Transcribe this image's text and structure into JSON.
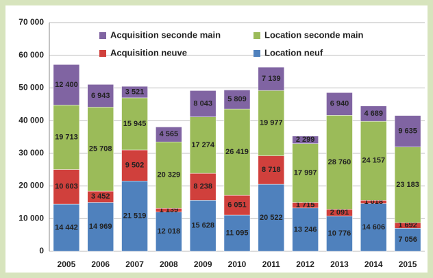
{
  "chart_data": {
    "type": "stacked_bar",
    "categories": [
      "2005",
      "2006",
      "2007",
      "2008",
      "2009",
      "2010",
      "2011",
      "2012",
      "2013",
      "2014",
      "2015"
    ],
    "series": [
      {
        "name": "Location neuf",
        "color": "#4f81bd",
        "values": [
          14442,
          14969,
          21519,
          12018,
          15628,
          11095,
          20522,
          13246,
          10776,
          14606,
          7056
        ],
        "value_labels": [
          "14 442",
          "14 969",
          "21 519",
          "12 018",
          "15 628",
          "11 095",
          "20 522",
          "13 246",
          "10 776",
          "14 606",
          "7 056"
        ]
      },
      {
        "name": "Acquisition neuve",
        "color": "#d0403c",
        "values": [
          10603,
          3452,
          9502,
          1139,
          8238,
          6051,
          8718,
          1715,
          2091,
          1018,
          1692
        ],
        "value_labels": [
          "10 603",
          "3 452",
          "9 502",
          "1 139",
          "8 238",
          "6 051",
          "8 718",
          "1 715",
          "2 091",
          "1 018",
          "1 692"
        ]
      },
      {
        "name": "Location seconde main",
        "color": "#9bbb59",
        "values": [
          19713,
          25708,
          15945,
          20329,
          17274,
          26419,
          19977,
          17997,
          28760,
          24157,
          23183
        ],
        "value_labels": [
          "19 713",
          "25 708",
          "15 945",
          "20 329",
          "17 274",
          "26 419",
          "19 977",
          "17 997",
          "28 760",
          "24 157",
          "23 183"
        ]
      },
      {
        "name": "Acquisition seconde main",
        "color": "#8064a2",
        "values": [
          12400,
          6943,
          3521,
          4565,
          8043,
          5809,
          7139,
          2299,
          6940,
          4689,
          9635
        ],
        "value_labels": [
          "12 400",
          "6 943",
          "3 521",
          "4 565",
          "8 043",
          "5 809",
          "7 139",
          "2 299",
          "6 940",
          "4 689",
          "9 635"
        ]
      }
    ],
    "ylim": [
      0,
      70000
    ],
    "yticks": [
      {
        "value": 0,
        "label": "0"
      },
      {
        "value": 10000,
        "label": "10 000"
      },
      {
        "value": 20000,
        "label": "20 000"
      },
      {
        "value": 30000,
        "label": "30 000"
      },
      {
        "value": 40000,
        "label": "40 000"
      },
      {
        "value": 50000,
        "label": "50 000"
      },
      {
        "value": 60000,
        "label": "60 000"
      },
      {
        "value": 70000,
        "label": "70 000"
      }
    ],
    "grid": true
  }
}
